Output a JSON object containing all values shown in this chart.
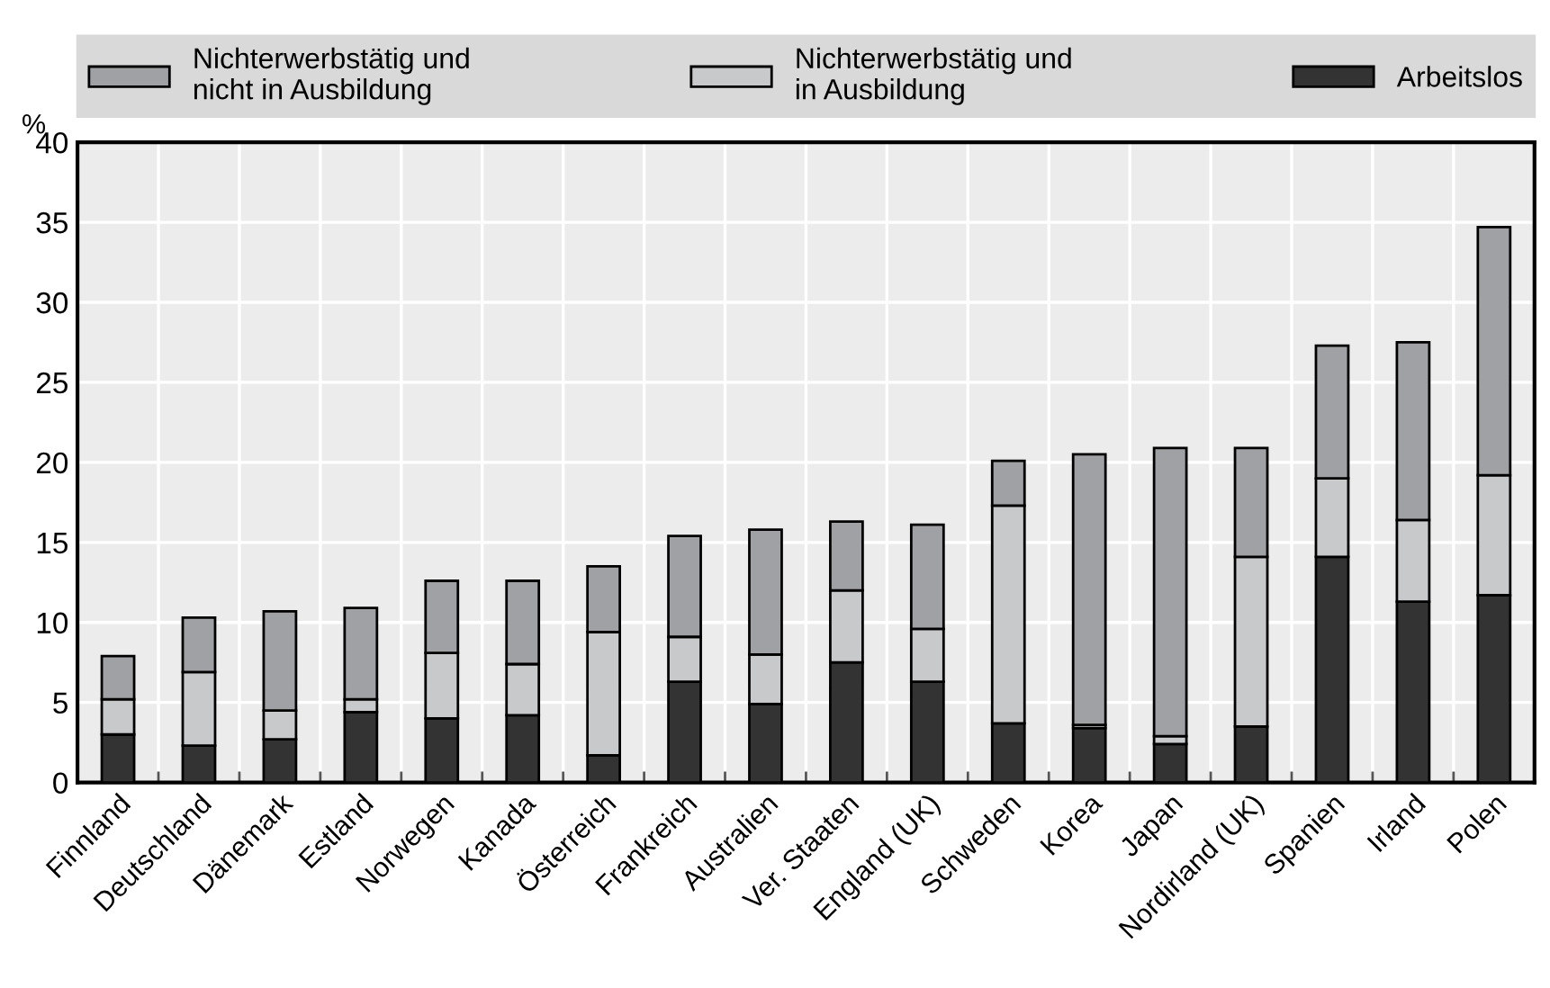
{
  "chart_data": {
    "type": "bar",
    "stacked": true,
    "ylabel": "%",
    "categories": [
      "Finnland",
      "Deutschland",
      "Dänemark",
      "Estland",
      "Norwegen",
      "Kanada",
      "Österreich",
      "Frankreich",
      "Australien",
      "Ver. Staaten",
      "England (UK)",
      "Schweden",
      "Korea",
      "Japan",
      "Nordirland (UK)",
      "Spanien",
      "Irland",
      "Polen"
    ],
    "series": [
      {
        "name": "Arbeitslos",
        "color": "#333333",
        "values": [
          3.0,
          2.3,
          2.7,
          4.4,
          4.0,
          4.2,
          1.7,
          6.3,
          4.9,
          7.5,
          6.3,
          3.7,
          3.4,
          2.4,
          3.5,
          14.1,
          11.3,
          11.7
        ]
      },
      {
        "name": "Nichterwerbstätig und\nin Ausbildung",
        "color": "#c8c9cb",
        "values": [
          2.2,
          4.6,
          1.8,
          0.8,
          4.1,
          3.2,
          7.7,
          2.8,
          3.1,
          4.5,
          3.3,
          13.6,
          0.2,
          0.5,
          10.6,
          4.9,
          5.1,
          7.5
        ]
      },
      {
        "name": "Nichterwerbstätig und\nnicht in Ausbildung",
        "color": "#a0a1a5",
        "values": [
          2.7,
          3.4,
          6.2,
          5.7,
          4.5,
          5.2,
          4.1,
          6.3,
          7.8,
          4.3,
          6.5,
          2.8,
          16.9,
          18.0,
          6.8,
          8.3,
          11.1,
          15.5
        ]
      }
    ],
    "ylim": [
      0,
      40
    ],
    "yticks": [
      0,
      5,
      10,
      15,
      20,
      25,
      30,
      35,
      40
    ],
    "grid": true,
    "legend": "top"
  }
}
